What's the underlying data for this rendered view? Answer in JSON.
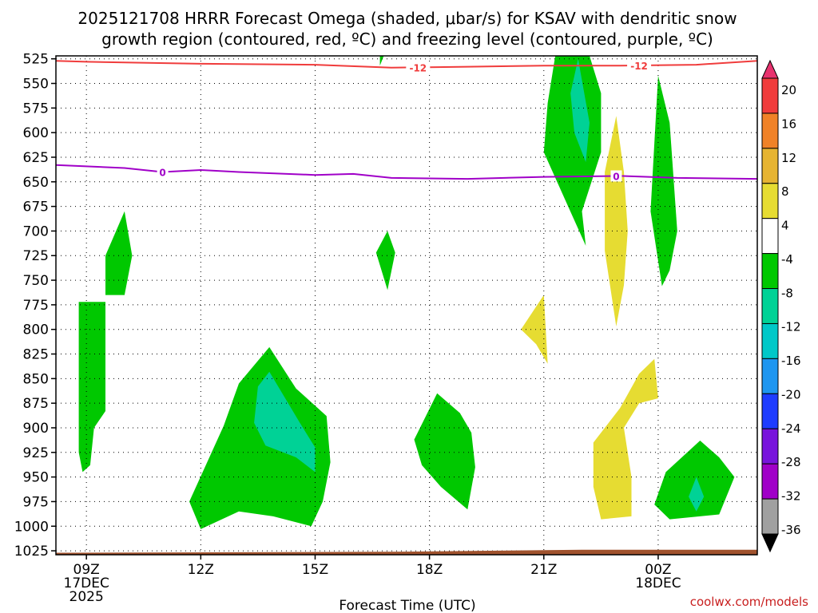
{
  "chart_data": {
    "type": "contour",
    "title_line1": "2025121708 HRRR Forecast Omega (shaded, μbar/s) for KSAV with dendritic snow",
    "title_line2": "growth region (contoured, red, ºC) and freezing level (contoured, purple, ºC)",
    "xlabel": "Forecast Time (UTC)",
    "credit": "coolwx.com/models",
    "x_range_hours": [
      -0.8,
      17.6
    ],
    "y_range_hpa": [
      522,
      1029
    ],
    "y_ticks": [
      525,
      550,
      575,
      600,
      625,
      650,
      675,
      700,
      725,
      750,
      775,
      800,
      825,
      850,
      875,
      900,
      925,
      950,
      975,
      1000,
      1025
    ],
    "x_ticks": [
      {
        "h": 0,
        "line1": "09Z",
        "line2": "17DEC",
        "line3": "2025"
      },
      {
        "h": 3,
        "line1": "12Z",
        "line2": "",
        "line3": ""
      },
      {
        "h": 6,
        "line1": "15Z",
        "line2": "",
        "line3": ""
      },
      {
        "h": 9,
        "line1": "18Z",
        "line2": "",
        "line3": ""
      },
      {
        "h": 12,
        "line1": "21Z",
        "line2": "",
        "line3": ""
      },
      {
        "h": 15,
        "line1": "00Z",
        "line2": "18DEC",
        "line3": ""
      }
    ],
    "colorbar": {
      "labels": [
        "20",
        "16",
        "12",
        "8",
        "4",
        "-4",
        "-8",
        "-12",
        "-16",
        "-20",
        "-24",
        "-28",
        "-32",
        "-36"
      ],
      "colors": [
        "#e8326e",
        "#f03c3c",
        "#f08228",
        "#e6b432",
        "#e6dc32",
        "#ffffff",
        "#00c800",
        "#00d296",
        "#00c8c8",
        "#1e96f0",
        "#1e3cff",
        "#7814dc",
        "#a000c8",
        "#a0a0a0",
        "#000000"
      ]
    },
    "omega_regions": [
      {
        "name": "neg-4-to-8",
        "color": "#00c800",
        "points": [
          [
            -0.2,
            772
          ],
          [
            0.5,
            772
          ],
          [
            0.5,
            883
          ],
          [
            0.2,
            900
          ],
          [
            0.1,
            938
          ],
          [
            -0.1,
            945
          ],
          [
            -0.2,
            925
          ]
        ]
      },
      {
        "name": "neg-4-to-8",
        "color": "#00c800",
        "points": [
          [
            0.5,
            765
          ],
          [
            0.5,
            725
          ],
          [
            1.0,
            680
          ],
          [
            1.2,
            725
          ],
          [
            1.0,
            765
          ]
        ]
      },
      {
        "name": "neg-4-to-8",
        "color": "#00c800",
        "points": [
          [
            2.7,
            975
          ],
          [
            3.6,
            898
          ],
          [
            4.0,
            855
          ],
          [
            4.8,
            818
          ],
          [
            5.5,
            860
          ],
          [
            6.3,
            888
          ],
          [
            6.4,
            935
          ],
          [
            6.2,
            975
          ],
          [
            5.9,
            1000
          ],
          [
            4.9,
            990
          ],
          [
            4.0,
            985
          ],
          [
            3.0,
            1003
          ]
        ]
      },
      {
        "name": "neg-8-to-12",
        "color": "#00d296",
        "points": [
          [
            4.5,
            858
          ],
          [
            4.8,
            843
          ],
          [
            5.6,
            895
          ],
          [
            6.0,
            920
          ],
          [
            6.0,
            945
          ],
          [
            5.5,
            930
          ],
          [
            4.7,
            918
          ],
          [
            4.4,
            895
          ]
        ]
      },
      {
        "name": "neg-4-to-8",
        "color": "#00c800",
        "points": [
          [
            7.6,
            722
          ],
          [
            7.9,
            700
          ],
          [
            8.1,
            722
          ],
          [
            7.9,
            760
          ]
        ]
      },
      {
        "name": "neg-4-to-8",
        "color": "#00c800",
        "points": [
          [
            7.7,
            522
          ],
          [
            7.8,
            522
          ],
          [
            7.7,
            532
          ]
        ]
      },
      {
        "name": "neg-4-to-8",
        "color": "#00c800",
        "points": [
          [
            8.6,
            912
          ],
          [
            9.2,
            865
          ],
          [
            9.8,
            885
          ],
          [
            10.1,
            905
          ],
          [
            10.2,
            940
          ],
          [
            10.0,
            983
          ],
          [
            9.3,
            960
          ],
          [
            8.8,
            938
          ]
        ]
      },
      {
        "name": "neg-4-to-8",
        "color": "#00c800",
        "points": [
          [
            12.3,
            522
          ],
          [
            13.2,
            522
          ],
          [
            13.5,
            560
          ],
          [
            13.5,
            620
          ],
          [
            13.0,
            680
          ],
          [
            13.1,
            715
          ],
          [
            12.0,
            620
          ],
          [
            12.1,
            570
          ]
        ]
      },
      {
        "name": "neg-8-to-12",
        "color": "#00d296",
        "points": [
          [
            12.9,
            525
          ],
          [
            13.2,
            590
          ],
          [
            13.1,
            630
          ],
          [
            12.8,
            600
          ],
          [
            12.7,
            560
          ]
        ]
      },
      {
        "name": "neg-4-to-8",
        "color": "#00c800",
        "points": [
          [
            15.0,
            542
          ],
          [
            15.3,
            590
          ],
          [
            15.5,
            700
          ],
          [
            15.3,
            740
          ],
          [
            15.1,
            756
          ],
          [
            14.8,
            680
          ],
          [
            14.9,
            610
          ]
        ]
      },
      {
        "name": "neg-4-to-8",
        "color": "#00c800",
        "points": [
          [
            15.2,
            945
          ],
          [
            16.1,
            913
          ],
          [
            16.6,
            930
          ],
          [
            17.0,
            950
          ],
          [
            16.6,
            988
          ],
          [
            15.3,
            993
          ],
          [
            14.9,
            978
          ]
        ]
      },
      {
        "name": "neg-8-to-12",
        "color": "#00d296",
        "points": [
          [
            16.0,
            950
          ],
          [
            16.2,
            970
          ],
          [
            16.0,
            985
          ],
          [
            15.8,
            970
          ]
        ]
      },
      {
        "name": "pos-4-to-8",
        "color": "#e6dc32",
        "points": [
          [
            11.4,
            800
          ],
          [
            12.0,
            765
          ],
          [
            12.1,
            835
          ],
          [
            11.8,
            815
          ]
        ]
      },
      {
        "name": "pos-4-to-8",
        "color": "#e6dc32",
        "points": [
          [
            13.9,
            583
          ],
          [
            14.1,
            640
          ],
          [
            14.2,
            700
          ],
          [
            14.1,
            755
          ],
          [
            13.9,
            797
          ],
          [
            13.6,
            720
          ],
          [
            13.6,
            640
          ]
        ]
      },
      {
        "name": "pos-4-to-8",
        "color": "#e6dc32",
        "points": [
          [
            13.3,
            915
          ],
          [
            14.0,
            880
          ],
          [
            14.5,
            845
          ],
          [
            14.9,
            830
          ],
          [
            15.0,
            870
          ],
          [
            14.5,
            875
          ],
          [
            14.1,
            900
          ],
          [
            14.3,
            950
          ],
          [
            14.3,
            990
          ],
          [
            13.5,
            993
          ],
          [
            13.3,
            960
          ]
        ]
      }
    ],
    "red_line_minus12": [
      [
        -0.8,
        527
      ],
      [
        0,
        528
      ],
      [
        3,
        530
      ],
      [
        6,
        531
      ],
      [
        8,
        534
      ],
      [
        10,
        533
      ],
      [
        12,
        532
      ],
      [
        14,
        532
      ],
      [
        16,
        531
      ],
      [
        17.6,
        527
      ]
    ],
    "red_label": "-12",
    "red_label_positions_h": [
      8.7,
      14.5
    ],
    "purple_line_0c": [
      [
        -0.8,
        633
      ],
      [
        1,
        636
      ],
      [
        2,
        640
      ],
      [
        3,
        638
      ],
      [
        4,
        640
      ],
      [
        6,
        643
      ],
      [
        7,
        642
      ],
      [
        8,
        646
      ],
      [
        10,
        647
      ],
      [
        12,
        645
      ],
      [
        14,
        644
      ],
      [
        15.5,
        646
      ],
      [
        17.6,
        647
      ]
    ],
    "purple_label": "0",
    "purple_label_positions_h": [
      2.0,
      13.9
    ],
    "terrain_top": [
      [
        -0.8,
        1027
      ],
      [
        8,
        1026
      ],
      [
        13,
        1024
      ],
      [
        17.6,
        1024
      ]
    ]
  }
}
